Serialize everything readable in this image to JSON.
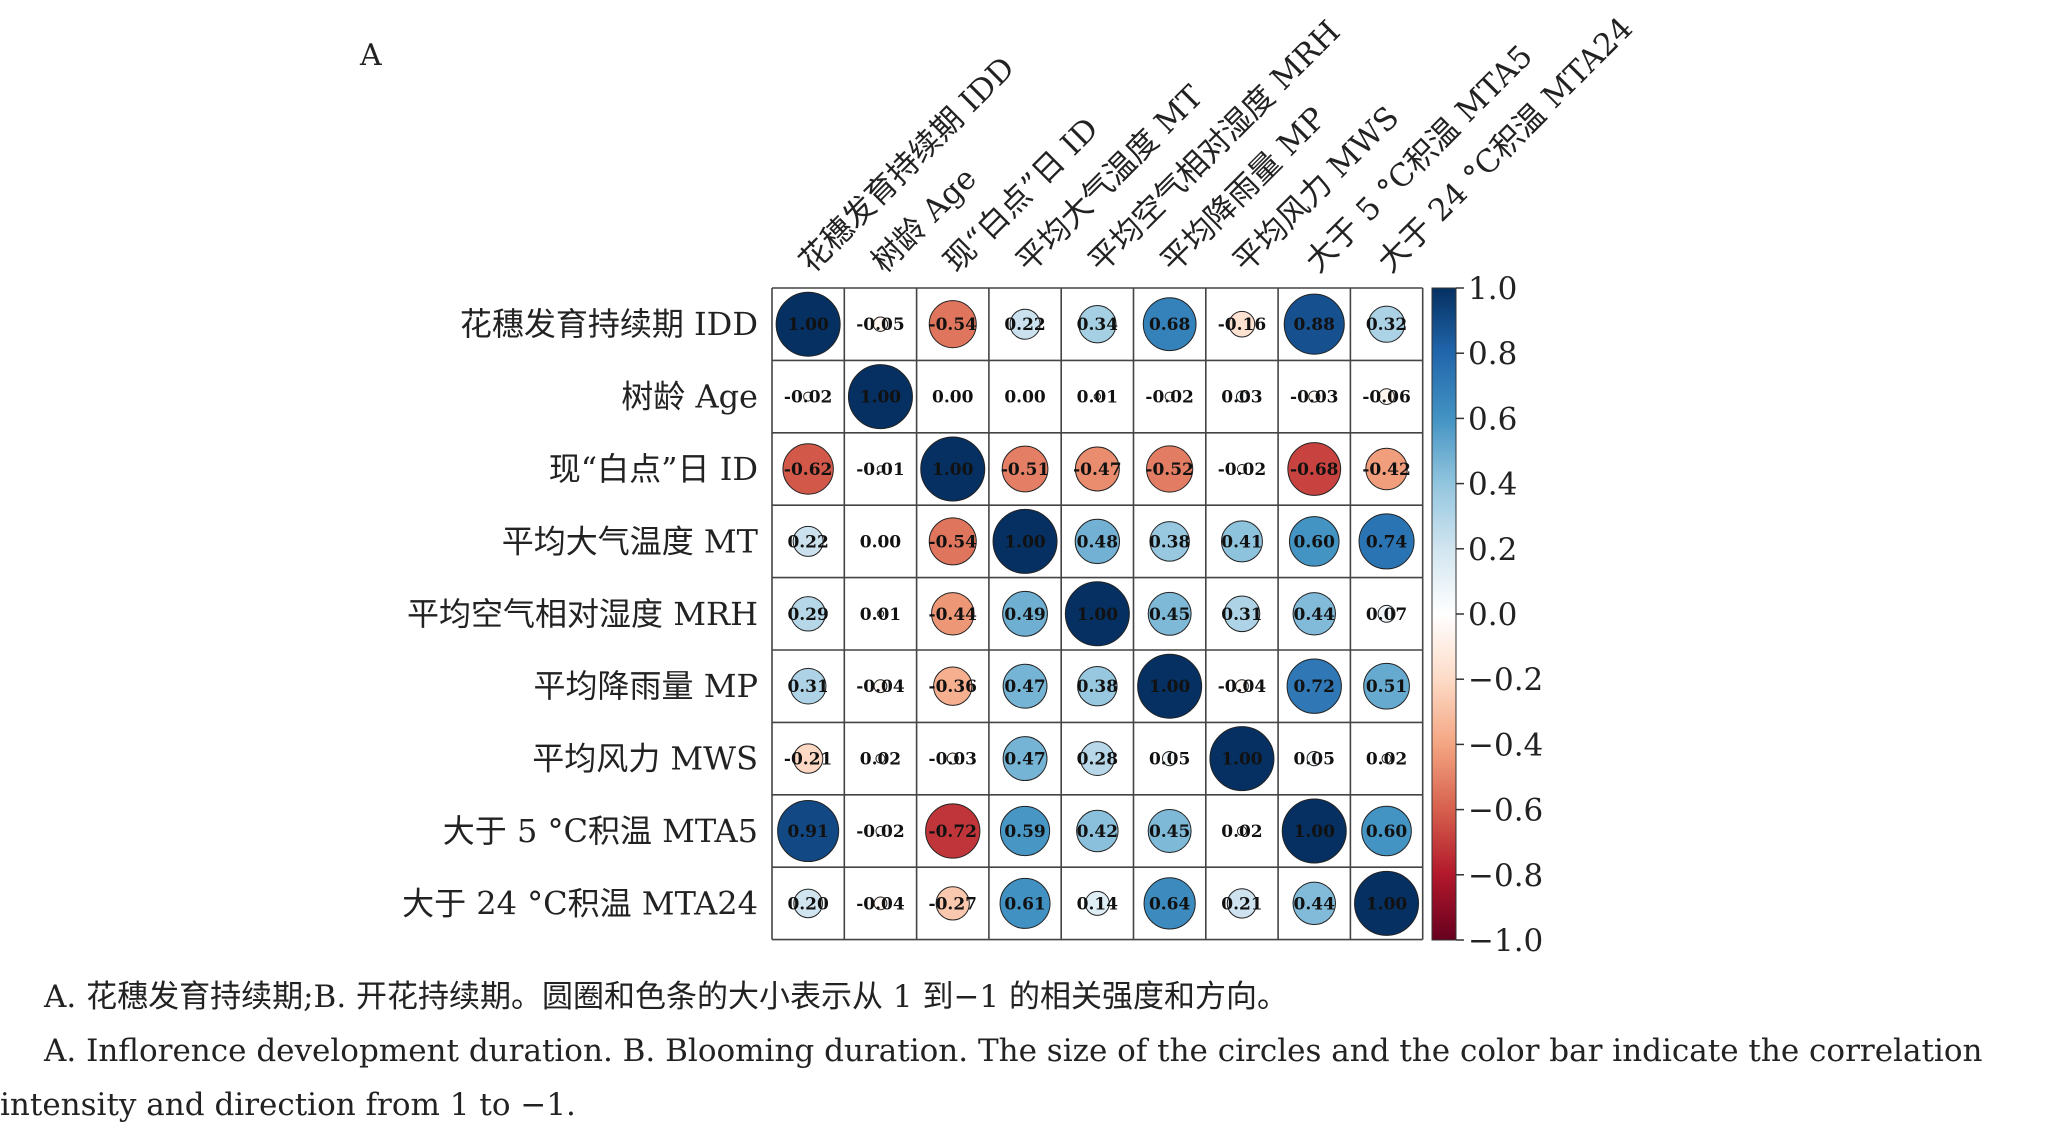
{
  "panel_label": "A",
  "caption_zh": "A. 花穗发育持续期;B. 开花持续期。圆圈和色条的大小表示从 1 到−1 的相关强度和方向。",
  "caption_en": "A. Inflorence development duration. B. Blooming duration. The size of the circles and the color bar indicate the correlation intensity and direction from 1 to −1.",
  "colors": {
    "negative": "#67001f",
    "neutral": "#ffffff",
    "positive": "#053061"
  },
  "chart_data": {
    "type": "heatmap",
    "variables": [
      "花穗发育持续期 IDD",
      "树龄 Age",
      "现“白点”日 ID",
      "平均大气温度 MT",
      "平均空气相对湿度 MRH",
      "平均降雨量 MP",
      "平均风力 MWS",
      "大于 5 °C积温 MTA5",
      "大于 24 °C积温 MTA24"
    ],
    "values": [
      [
        "1.00",
        "-0.05",
        "-0.54",
        "0.22",
        "0.34",
        "0.68",
        "-0.16",
        "0.88",
        "0.32"
      ],
      [
        "-0.02",
        "1.00",
        "0.00",
        "0.00",
        "0.01",
        "-0.02",
        "0.03",
        "-0.03",
        "-0.06"
      ],
      [
        "-0.62",
        "-0.01",
        "1.00",
        "-0.51",
        "-0.47",
        "-0.52",
        "-0.02",
        "-0.68",
        "-0.42"
      ],
      [
        "0.22",
        "0.00",
        "-0.54",
        "1.00",
        "0.48",
        "0.38",
        "0.41",
        "0.60",
        "0.74"
      ],
      [
        "0.29",
        "0.01",
        "-0.44",
        "0.49",
        "1.00",
        "0.45",
        "0.31",
        "0.44",
        "0.07"
      ],
      [
        "0.31",
        "-0.04",
        "-0.36",
        "0.47",
        "0.38",
        "1.00",
        "-0.04",
        "0.72",
        "0.51"
      ],
      [
        "-0.21",
        "0.02",
        "-0.03",
        "0.47",
        "0.28",
        "0.05",
        "1.00",
        "0.05",
        "0.02"
      ],
      [
        "0.91",
        "-0.02",
        "-0.72",
        "0.59",
        "0.42",
        "0.45",
        "0.02",
        "1.00",
        "0.60"
      ],
      [
        "0.20",
        "-0.04",
        "-0.27",
        "0.61",
        "0.14",
        "0.64",
        "0.21",
        "0.44",
        "1.00"
      ]
    ],
    "colorbar_ticks": [
      "1.0",
      "0.8",
      "0.6",
      "0.4",
      "0.2",
      "0.0",
      "−0.2",
      "−0.4",
      "−0.6",
      "−0.8",
      "−1.0"
    ],
    "colorbar_range": [
      -1,
      1
    ],
    "encoding": "circle size and color represent correlation"
  }
}
